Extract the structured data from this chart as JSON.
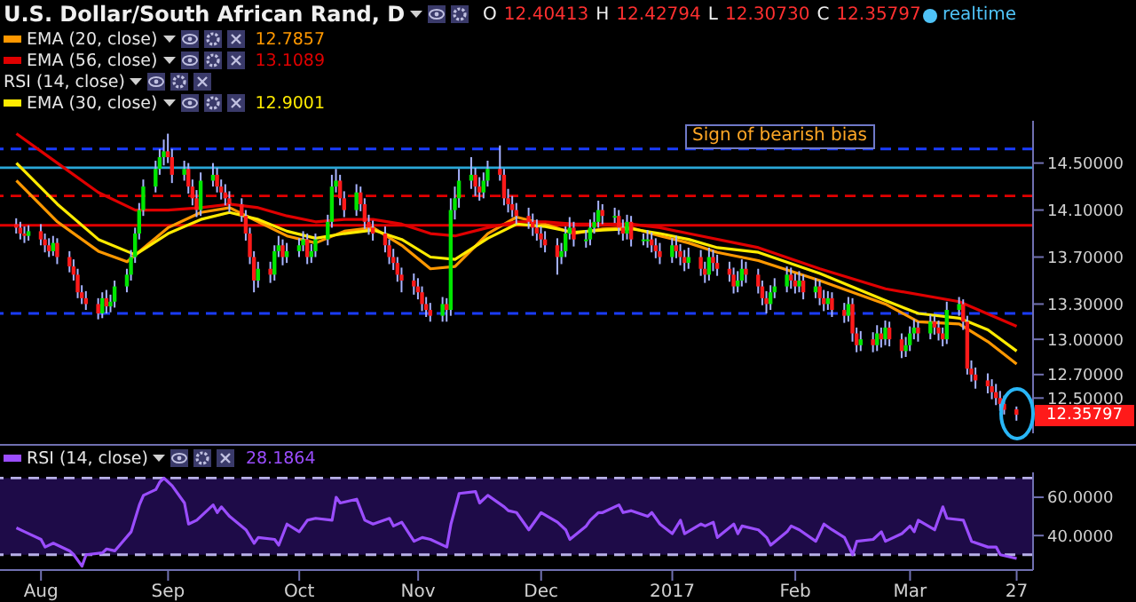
{
  "chart_data": [
    {
      "type": "candlestick",
      "title": "U.S. Dollar/South African Rand, D",
      "x": [
        "2016-07-26",
        "2016-07-27",
        "2016-07-28",
        "2016-07-29",
        "2016-08-01",
        "2016-08-02",
        "2016-08-03",
        "2016-08-04",
        "2016-08-05",
        "2016-08-08",
        "2016-08-09",
        "2016-08-10",
        "2016-08-11",
        "2016-08-12",
        "2016-08-15",
        "2016-08-16",
        "2016-08-17",
        "2016-08-18",
        "2016-08-19",
        "2016-08-22",
        "2016-08-23",
        "2016-08-24",
        "2016-08-25",
        "2016-08-26",
        "2016-08-29",
        "2016-08-30",
        "2016-08-31",
        "2016-09-01",
        "2016-09-02",
        "2016-09-05",
        "2016-09-06",
        "2016-09-07",
        "2016-09-08",
        "2016-09-09",
        "2016-09-12",
        "2016-09-13",
        "2016-09-14",
        "2016-09-15",
        "2016-09-16",
        "2016-09-19",
        "2016-09-20",
        "2016-09-21",
        "2016-09-22",
        "2016-09-23",
        "2016-09-26",
        "2016-09-27",
        "2016-09-28",
        "2016-09-29",
        "2016-09-30",
        "2016-10-03",
        "2016-10-04",
        "2016-10-05",
        "2016-10-06",
        "2016-10-07",
        "2016-10-10",
        "2016-10-11",
        "2016-10-12",
        "2016-10-13",
        "2016-10-14",
        "2016-10-17",
        "2016-10-18",
        "2016-10-19",
        "2016-10-20",
        "2016-10-21",
        "2016-10-24",
        "2016-10-25",
        "2016-10-26",
        "2016-10-27",
        "2016-10-28",
        "2016-10-31",
        "2016-11-01",
        "2016-11-02",
        "2016-11-03",
        "2016-11-04",
        "2016-11-07",
        "2016-11-08",
        "2016-11-09",
        "2016-11-10",
        "2016-11-11",
        "2016-11-14",
        "2016-11-15",
        "2016-11-16",
        "2016-11-17",
        "2016-11-18",
        "2016-11-21",
        "2016-11-22",
        "2016-11-23",
        "2016-11-24",
        "2016-11-25",
        "2016-11-28",
        "2016-11-29",
        "2016-11-30",
        "2016-12-01",
        "2016-12-02",
        "2016-12-05",
        "2016-12-06",
        "2016-12-07",
        "2016-12-08",
        "2016-12-09",
        "2016-12-12",
        "2016-12-13",
        "2016-12-14",
        "2016-12-15",
        "2016-12-16",
        "2016-12-19",
        "2016-12-20",
        "2016-12-21",
        "2016-12-22",
        "2016-12-23",
        "2016-12-26",
        "2016-12-27",
        "2016-12-28",
        "2016-12-29",
        "2016-12-30",
        "2017-01-02",
        "2017-01-03",
        "2017-01-04",
        "2017-01-05",
        "2017-01-06",
        "2017-01-09",
        "2017-01-10",
        "2017-01-11",
        "2017-01-12",
        "2017-01-13",
        "2017-01-16",
        "2017-01-17",
        "2017-01-18",
        "2017-01-19",
        "2017-01-20",
        "2017-01-23",
        "2017-01-24",
        "2017-01-25",
        "2017-01-26",
        "2017-01-27",
        "2017-01-30",
        "2017-01-31",
        "2017-02-01",
        "2017-02-02",
        "2017-02-03",
        "2017-02-06",
        "2017-02-07",
        "2017-02-08",
        "2017-02-09",
        "2017-02-10",
        "2017-02-13",
        "2017-02-14",
        "2017-02-15",
        "2017-02-16",
        "2017-02-17",
        "2017-02-20",
        "2017-02-21",
        "2017-02-22",
        "2017-02-23",
        "2017-02-24",
        "2017-02-27",
        "2017-02-28",
        "2017-03-01",
        "2017-03-02",
        "2017-03-03",
        "2017-03-06",
        "2017-03-07",
        "2017-03-08",
        "2017-03-09",
        "2017-03-10",
        "2017-03-13",
        "2017-03-14",
        "2017-03-15",
        "2017-03-16",
        "2017-03-17",
        "2017-03-20",
        "2017-03-21",
        "2017-03-22",
        "2017-03-23",
        "2017-03-24",
        "2017-03-27"
      ],
      "ohlc": [
        [
          13.98,
          14.03,
          13.9,
          13.95
        ],
        [
          13.95,
          14.0,
          13.85,
          13.9
        ],
        [
          13.9,
          13.96,
          13.82,
          13.88
        ],
        [
          13.88,
          13.97,
          13.84,
          13.92
        ],
        [
          13.92,
          13.98,
          13.8,
          13.85
        ],
        [
          13.85,
          13.9,
          13.74,
          13.8
        ],
        [
          13.8,
          13.86,
          13.7,
          13.75
        ],
        [
          13.75,
          13.88,
          13.71,
          13.82
        ],
        [
          13.82,
          13.86,
          13.64,
          13.7
        ],
        [
          13.7,
          13.75,
          13.57,
          13.62
        ],
        [
          13.62,
          13.68,
          13.5,
          13.55
        ],
        [
          13.55,
          13.6,
          13.35,
          13.4
        ],
        [
          13.4,
          13.46,
          13.3,
          13.35
        ],
        [
          13.35,
          13.41,
          13.25,
          13.3
        ],
        [
          13.3,
          13.35,
          13.17,
          13.22
        ],
        [
          13.22,
          13.4,
          13.18,
          13.35
        ],
        [
          13.35,
          13.42,
          13.22,
          13.28
        ],
        [
          13.28,
          13.38,
          13.23,
          13.32
        ],
        [
          13.32,
          13.5,
          13.27,
          13.45
        ],
        [
          13.45,
          13.6,
          13.4,
          13.55
        ],
        [
          13.55,
          13.76,
          13.5,
          13.7
        ],
        [
          13.7,
          13.95,
          13.65,
          13.9
        ],
        [
          13.9,
          14.16,
          13.85,
          14.1
        ],
        [
          14.1,
          14.36,
          14.05,
          14.3
        ],
        [
          14.3,
          14.52,
          14.25,
          14.45
        ],
        [
          14.45,
          14.62,
          14.4,
          14.55
        ],
        [
          14.55,
          14.7,
          14.48,
          14.6
        ],
        [
          14.6,
          14.75,
          14.5,
          14.55
        ],
        [
          14.55,
          14.62,
          14.33,
          14.4
        ],
        [
          14.4,
          14.52,
          14.35,
          14.45
        ],
        [
          14.45,
          14.5,
          14.24,
          14.3
        ],
        [
          14.3,
          14.36,
          14.14,
          14.2
        ],
        [
          14.2,
          14.27,
          14.04,
          14.1
        ],
        [
          14.1,
          14.42,
          14.05,
          14.35
        ],
        [
          14.35,
          14.5,
          14.3,
          14.4
        ],
        [
          14.4,
          14.46,
          14.25,
          14.3
        ],
        [
          14.3,
          14.36,
          14.19,
          14.25
        ],
        [
          14.25,
          14.32,
          14.14,
          14.2
        ],
        [
          14.2,
          14.26,
          14.08,
          14.15
        ],
        [
          14.15,
          14.2,
          14.0,
          14.05
        ],
        [
          14.05,
          14.1,
          13.84,
          13.9
        ],
        [
          13.9,
          13.95,
          13.64,
          13.7
        ],
        [
          13.7,
          13.75,
          13.4,
          13.5
        ],
        [
          13.5,
          13.66,
          13.44,
          13.6
        ],
        [
          13.6,
          13.66,
          13.48,
          13.55
        ],
        [
          13.55,
          13.8,
          13.5,
          13.75
        ],
        [
          13.75,
          13.88,
          13.7,
          13.8
        ],
        [
          13.8,
          13.85,
          13.63,
          13.7
        ],
        [
          13.7,
          13.82,
          13.65,
          13.75
        ],
        [
          13.75,
          13.86,
          13.7,
          13.8
        ],
        [
          13.8,
          13.92,
          13.75,
          13.85
        ],
        [
          13.85,
          13.9,
          13.64,
          13.7
        ],
        [
          13.7,
          13.81,
          13.65,
          13.75
        ],
        [
          13.75,
          13.9,
          13.7,
          13.85
        ],
        [
          13.85,
          14.06,
          13.8,
          14.0
        ],
        [
          14.0,
          14.4,
          13.95,
          14.3
        ],
        [
          14.3,
          14.45,
          14.25,
          14.35
        ],
        [
          14.35,
          14.4,
          14.14,
          14.2
        ],
        [
          14.2,
          14.26,
          14.04,
          14.1
        ],
        [
          14.1,
          14.32,
          14.05,
          14.25
        ],
        [
          14.25,
          14.3,
          14.09,
          14.15
        ],
        [
          14.15,
          14.2,
          13.94,
          14.0
        ],
        [
          14.0,
          14.06,
          13.89,
          13.95
        ],
        [
          13.95,
          14.01,
          13.84,
          13.9
        ],
        [
          13.9,
          13.96,
          13.74,
          13.8
        ],
        [
          13.8,
          13.85,
          13.64,
          13.7
        ],
        [
          13.7,
          13.77,
          13.59,
          13.65
        ],
        [
          13.65,
          13.7,
          13.49,
          13.55
        ],
        [
          13.55,
          13.61,
          13.4,
          13.5
        ],
        [
          13.5,
          13.56,
          13.38,
          13.45
        ],
        [
          13.45,
          13.52,
          13.34,
          13.4
        ],
        [
          13.4,
          13.45,
          13.24,
          13.3
        ],
        [
          13.3,
          13.36,
          13.19,
          13.25
        ],
        [
          13.25,
          13.31,
          13.15,
          13.2
        ],
        [
          13.2,
          13.36,
          13.15,
          13.3
        ],
        [
          13.3,
          13.35,
          13.15,
          13.25
        ],
        [
          13.25,
          14.2,
          13.2,
          14.1
        ],
        [
          14.1,
          14.3,
          14.02,
          14.2
        ],
        [
          14.2,
          14.45,
          14.12,
          14.35
        ],
        [
          14.35,
          14.55,
          14.28,
          14.4
        ],
        [
          14.4,
          14.46,
          14.22,
          14.3
        ],
        [
          14.3,
          14.38,
          14.18,
          14.25
        ],
        [
          14.25,
          14.42,
          14.2,
          14.35
        ],
        [
          14.35,
          14.52,
          14.3,
          14.45
        ],
        [
          14.45,
          14.65,
          14.35,
          14.4
        ],
        [
          14.4,
          14.45,
          14.14,
          14.2
        ],
        [
          14.2,
          14.28,
          14.08,
          14.15
        ],
        [
          14.15,
          14.22,
          14.04,
          14.1
        ],
        [
          14.1,
          14.16,
          13.98,
          14.05
        ],
        [
          14.05,
          14.12,
          13.94,
          14.0
        ],
        [
          14.0,
          14.07,
          13.88,
          13.95
        ],
        [
          13.95,
          14.02,
          13.84,
          13.9
        ],
        [
          13.9,
          13.96,
          13.78,
          13.85
        ],
        [
          13.85,
          13.92,
          13.74,
          13.8
        ],
        [
          13.8,
          13.86,
          13.55,
          13.7
        ],
        [
          13.7,
          13.82,
          13.64,
          13.75
        ],
        [
          13.75,
          13.96,
          13.7,
          13.9
        ],
        [
          13.9,
          14.04,
          13.85,
          13.95
        ],
        [
          13.95,
          14.0,
          13.79,
          13.85
        ],
        [
          13.85,
          13.93,
          13.78,
          13.85
        ],
        [
          13.85,
          14.02,
          13.8,
          13.95
        ],
        [
          13.95,
          14.08,
          13.9,
          14.0
        ],
        [
          14.0,
          14.18,
          13.95,
          14.1
        ],
        [
          14.1,
          14.15,
          13.98,
          14.05
        ],
        [
          14.05,
          14.12,
          13.99,
          14.05
        ],
        [
          14.05,
          14.1,
          13.89,
          13.95
        ],
        [
          13.95,
          14.02,
          13.84,
          13.9
        ],
        [
          13.9,
          14.06,
          13.85,
          14.0
        ],
        [
          14.0,
          14.05,
          13.79,
          13.85
        ],
        [
          13.85,
          13.9,
          13.8,
          13.85
        ],
        [
          13.85,
          13.93,
          13.78,
          13.85
        ],
        [
          13.85,
          13.91,
          13.74,
          13.8
        ],
        [
          13.8,
          13.86,
          13.69,
          13.75
        ],
        [
          13.75,
          13.82,
          13.64,
          13.7
        ],
        [
          13.7,
          13.86,
          13.65,
          13.8
        ],
        [
          13.8,
          13.88,
          13.69,
          13.75
        ],
        [
          13.75,
          13.81,
          13.63,
          13.7
        ],
        [
          13.7,
          13.76,
          13.58,
          13.65
        ],
        [
          13.65,
          13.78,
          13.6,
          13.7
        ],
        [
          13.7,
          13.76,
          13.54,
          13.6
        ],
        [
          13.6,
          13.66,
          13.48,
          13.55
        ],
        [
          13.55,
          13.78,
          13.5,
          13.7
        ],
        [
          13.7,
          13.76,
          13.58,
          13.65
        ],
        [
          13.65,
          13.72,
          13.54,
          13.6
        ],
        [
          13.6,
          13.66,
          13.49,
          13.55
        ],
        [
          13.55,
          13.61,
          13.39,
          13.45
        ],
        [
          13.45,
          13.58,
          13.4,
          13.5
        ],
        [
          13.5,
          13.68,
          13.45,
          13.6
        ],
        [
          13.6,
          13.66,
          13.48,
          13.55
        ],
        [
          13.55,
          13.6,
          13.39,
          13.45
        ],
        [
          13.45,
          13.5,
          13.29,
          13.35
        ],
        [
          13.35,
          13.41,
          13.22,
          13.3
        ],
        [
          13.3,
          13.46,
          13.25,
          13.4
        ],
        [
          13.4,
          13.52,
          13.35,
          13.45
        ],
        [
          13.45,
          13.62,
          13.4,
          13.55
        ],
        [
          13.55,
          13.61,
          13.43,
          13.5
        ],
        [
          13.5,
          13.56,
          13.39,
          13.45
        ],
        [
          13.45,
          13.58,
          13.4,
          13.5
        ],
        [
          13.5,
          13.55,
          13.34,
          13.4
        ],
        [
          13.4,
          13.52,
          13.35,
          13.45
        ],
        [
          13.45,
          13.5,
          13.29,
          13.35
        ],
        [
          13.35,
          13.42,
          13.24,
          13.3
        ],
        [
          13.3,
          13.41,
          13.25,
          13.35
        ],
        [
          13.35,
          13.4,
          13.19,
          13.25
        ],
        [
          13.25,
          13.31,
          13.14,
          13.2
        ],
        [
          13.2,
          13.36,
          13.15,
          13.3
        ],
        [
          13.3,
          13.35,
          12.98,
          13.05
        ],
        [
          13.05,
          13.1,
          12.89,
          12.95
        ],
        [
          12.95,
          13.07,
          12.9,
          13.0
        ],
        [
          13.0,
          13.06,
          12.89,
          12.95
        ],
        [
          12.95,
          13.12,
          12.9,
          13.05
        ],
        [
          13.05,
          13.1,
          12.93,
          13.0
        ],
        [
          13.0,
          13.16,
          12.95,
          13.1
        ],
        [
          13.1,
          13.15,
          12.94,
          13.0
        ],
        [
          13.0,
          13.05,
          12.84,
          12.9
        ],
        [
          12.9,
          13.02,
          12.85,
          12.95
        ],
        [
          12.95,
          13.11,
          12.9,
          13.05
        ],
        [
          13.05,
          13.17,
          13.0,
          13.1
        ],
        [
          13.1,
          13.15,
          12.98,
          13.05
        ],
        [
          13.05,
          13.21,
          13.0,
          13.15
        ],
        [
          13.15,
          13.2,
          13.04,
          13.1
        ],
        [
          13.1,
          13.16,
          12.99,
          13.05
        ],
        [
          13.05,
          13.1,
          12.94,
          13.0
        ],
        [
          13.0,
          13.32,
          12.96,
          13.25
        ],
        [
          13.25,
          13.36,
          13.2,
          13.3
        ],
        [
          13.3,
          13.34,
          13.08,
          13.15
        ],
        [
          13.15,
          13.2,
          12.7,
          12.75
        ],
        [
          12.75,
          12.82,
          12.64,
          12.7
        ],
        [
          12.7,
          12.76,
          12.58,
          12.65
        ],
        [
          12.65,
          12.71,
          12.54,
          12.6
        ],
        [
          12.6,
          12.66,
          12.49,
          12.55
        ],
        [
          12.55,
          12.62,
          12.44,
          12.5
        ],
        [
          12.5,
          12.56,
          12.39,
          12.45
        ],
        [
          12.45,
          12.52,
          12.36,
          12.4
        ],
        [
          12.40413,
          12.42794,
          12.3073,
          12.35797
        ]
      ],
      "series": [
        {
          "type": "line",
          "name": "EMA (20, close)",
          "color": "#ff9800",
          "x": [
            "2016-07-26",
            "2016-08-05",
            "2016-08-15",
            "2016-08-22",
            "2016-09-01",
            "2016-09-09",
            "2016-09-16",
            "2016-09-23",
            "2016-09-30",
            "2016-10-07",
            "2016-10-14",
            "2016-10-21",
            "2016-10-28",
            "2016-11-04",
            "2016-11-10",
            "2016-11-18",
            "2016-11-25",
            "2016-12-02",
            "2016-12-09",
            "2016-12-16",
            "2016-12-23",
            "2016-12-30",
            "2017-01-06",
            "2017-01-13",
            "2017-01-23",
            "2017-02-07",
            "2017-02-23",
            "2017-03-03",
            "2017-03-13",
            "2017-03-20",
            "2017-03-27"
          ],
          "values": [
            14.35,
            14.0,
            13.75,
            13.66,
            13.95,
            14.08,
            14.12,
            14.0,
            13.88,
            13.82,
            13.92,
            13.95,
            13.8,
            13.6,
            13.62,
            13.9,
            14.04,
            13.98,
            13.9,
            13.94,
            13.95,
            13.88,
            13.82,
            13.74,
            13.67,
            13.5,
            13.3,
            13.15,
            13.13,
            12.98,
            12.79
          ]
        },
        {
          "type": "line",
          "name": "EMA (56, close)",
          "color": "#e00000",
          "x": [
            "2016-07-26",
            "2016-08-05",
            "2016-08-15",
            "2016-08-24",
            "2016-09-01",
            "2016-09-09",
            "2016-09-16",
            "2016-09-23",
            "2016-09-30",
            "2016-10-07",
            "2016-10-14",
            "2016-10-21",
            "2016-10-28",
            "2016-11-04",
            "2016-11-10",
            "2016-11-18",
            "2016-11-25",
            "2016-12-02",
            "2016-12-09",
            "2016-12-16",
            "2016-12-23",
            "2016-12-30",
            "2017-01-06",
            "2017-01-23",
            "2017-02-07",
            "2017-02-23",
            "2017-03-13",
            "2017-03-27"
          ],
          "values": [
            14.75,
            14.5,
            14.25,
            14.1,
            14.1,
            14.12,
            14.15,
            14.12,
            14.05,
            14.0,
            14.02,
            14.02,
            13.98,
            13.9,
            13.88,
            13.95,
            14.0,
            14.0,
            13.98,
            13.98,
            13.98,
            13.95,
            13.9,
            13.78,
            13.6,
            13.43,
            13.32,
            13.11
          ]
        },
        {
          "type": "line",
          "name": "EMA (30, close)",
          "color": "#ffeb00",
          "x": [
            "2016-07-26",
            "2016-08-05",
            "2016-08-15",
            "2016-08-24",
            "2016-09-01",
            "2016-09-09",
            "2016-09-16",
            "2016-09-23",
            "2016-09-30",
            "2016-10-07",
            "2016-10-14",
            "2016-10-21",
            "2016-10-28",
            "2016-11-04",
            "2016-11-10",
            "2016-11-18",
            "2016-11-25",
            "2016-12-02",
            "2016-12-09",
            "2016-12-16",
            "2016-12-23",
            "2016-12-30",
            "2017-01-06",
            "2017-01-13",
            "2017-01-23",
            "2017-02-07",
            "2017-02-23",
            "2017-03-03",
            "2017-03-13",
            "2017-03-20",
            "2017-03-27"
          ],
          "values": [
            14.5,
            14.15,
            13.85,
            13.72,
            13.9,
            14.02,
            14.08,
            14.02,
            13.92,
            13.86,
            13.9,
            13.93,
            13.85,
            13.7,
            13.68,
            13.86,
            13.98,
            13.96,
            13.91,
            13.93,
            13.94,
            13.9,
            13.85,
            13.78,
            13.74,
            13.56,
            13.33,
            13.22,
            13.18,
            13.08,
            12.9
          ]
        }
      ],
      "xlim": [
        "2016-07-22",
        "2017-03-31"
      ],
      "ylim": [
        12.2,
        14.86
      ],
      "yticks": [
        {
          "value": 12.5,
          "label": "12.50000"
        },
        {
          "value": 12.7,
          "label": "12.70000"
        },
        {
          "value": 13.0,
          "label": "13.00000"
        },
        {
          "value": 13.3,
          "label": "13.30000"
        },
        {
          "value": 13.7,
          "label": "13.70000"
        },
        {
          "value": 14.1,
          "label": "14.10000"
        },
        {
          "value": 14.5,
          "label": "14.50000"
        }
      ],
      "tick_labels": "y",
      "legend": "top left",
      "ref_lines": [
        {
          "axis": "y",
          "value": 14.62,
          "color": "#1a3cff",
          "line_style": "dashed"
        },
        {
          "axis": "y",
          "value": 13.22,
          "color": "#1a3cff",
          "line_style": "dashed"
        },
        {
          "axis": "y",
          "value": 14.46,
          "color": "#2aa7d8",
          "line_style": "solid"
        },
        {
          "axis": "y",
          "value": 14.22,
          "color": "#e00000",
          "line_style": "dashed"
        },
        {
          "axis": "y",
          "value": 13.97,
          "color": "#e00000",
          "line_style": "solid"
        }
      ],
      "annotations": [
        "O 12.40413 H 12.42794 L 12.30730 C 12.35797",
        "RSI (14, close)",
        "Sign of bearish bias",
        "realtime",
        "12.35797",
        "12.7857",
        "13.1089",
        "12.9001"
      ]
    },
    {
      "type": "line",
      "x": [
        "2016-07-26",
        "2016-07-28",
        "2016-08-01",
        "2016-08-02",
        "2016-08-04",
        "2016-08-08",
        "2016-08-09",
        "2016-08-11",
        "2016-08-12",
        "2016-08-16",
        "2016-08-17",
        "2016-08-19",
        "2016-08-23",
        "2016-08-25",
        "2016-08-26",
        "2016-08-29",
        "2016-08-30",
        "2016-08-31",
        "2016-09-02",
        "2016-09-05",
        "2016-09-06",
        "2016-09-08",
        "2016-09-12",
        "2016-09-13",
        "2016-09-14",
        "2016-09-16",
        "2016-09-20",
        "2016-09-22",
        "2016-09-23",
        "2016-09-27",
        "2016-09-28",
        "2016-09-30",
        "2016-10-03",
        "2016-10-05",
        "2016-10-07",
        "2016-10-11",
        "2016-10-12",
        "2016-10-13",
        "2016-10-17",
        "2016-10-19",
        "2016-10-21",
        "2016-10-25",
        "2016-10-26",
        "2016-10-28",
        "2016-10-31",
        "2016-11-02",
        "2016-11-04",
        "2016-11-08",
        "2016-11-09",
        "2016-11-11",
        "2016-11-15",
        "2016-11-16",
        "2016-11-18",
        "2016-11-22",
        "2016-11-23",
        "2016-11-25",
        "2016-11-28",
        "2016-11-30",
        "2016-12-01",
        "2016-12-05",
        "2016-12-07",
        "2016-12-08",
        "2016-12-12",
        "2016-12-13",
        "2016-12-15",
        "2016-12-16",
        "2016-12-20",
        "2016-12-21",
        "2016-12-23",
        "2016-12-27",
        "2016-12-28",
        "2016-12-30",
        "2017-01-02",
        "2017-01-04",
        "2017-01-05",
        "2017-01-09",
        "2017-01-10",
        "2017-01-12",
        "2017-01-13",
        "2017-01-17",
        "2017-01-18",
        "2017-01-19",
        "2017-01-23",
        "2017-01-25",
        "2017-01-26",
        "2017-01-30",
        "2017-01-31",
        "2017-02-02",
        "2017-02-06",
        "2017-02-08",
        "2017-02-10",
        "2017-02-13",
        "2017-02-15",
        "2017-02-16",
        "2017-02-20",
        "2017-02-22",
        "2017-02-23",
        "2017-02-27",
        "2017-03-01",
        "2017-03-02",
        "2017-03-03",
        "2017-03-07",
        "2017-03-09",
        "2017-03-10",
        "2017-03-14",
        "2017-03-16",
        "2017-03-20",
        "2017-03-22",
        "2017-03-23",
        "2017-03-27"
      ],
      "series": [
        {
          "name": "RSI (14, close)",
          "color": "#9b4dff",
          "values": [
            44,
            42,
            38,
            34,
            36,
            32,
            30,
            24,
            30,
            31,
            33,
            32,
            42,
            56,
            61,
            64,
            68,
            70,
            66,
            57,
            46,
            48,
            56,
            52,
            55,
            50,
            43,
            36,
            39,
            38,
            35,
            46,
            42,
            48,
            49,
            48,
            60,
            57,
            59,
            48,
            46,
            49,
            45,
            47,
            37,
            39,
            38,
            34,
            46,
            62,
            63,
            57,
            61,
            55,
            53,
            52,
            43,
            49,
            52,
            47,
            43,
            38,
            45,
            48,
            52,
            52,
            56,
            52,
            53,
            50,
            52,
            46,
            41,
            48,
            41,
            46,
            45,
            47,
            39,
            46,
            41,
            45,
            43,
            39,
            35,
            42,
            45,
            43,
            37,
            46,
            43,
            39,
            30,
            37,
            38,
            42,
            37,
            41,
            45,
            42,
            48,
            43,
            55,
            49,
            48,
            37,
            34,
            34,
            30,
            28
          ]
        }
      ],
      "annotations": [
        "28.1864"
      ],
      "xlim": [
        "2016-07-22",
        "2017-03-31"
      ],
      "xticks": [
        {
          "value": "2016-08-01",
          "label": "Aug"
        },
        {
          "value": "2016-09-01",
          "label": "Sep"
        },
        {
          "value": "2016-10-03",
          "label": "Oct"
        },
        {
          "value": "2016-11-01",
          "label": "Nov"
        },
        {
          "value": "2016-12-01",
          "label": "Dec"
        },
        {
          "value": "2017-01-02",
          "label": "2017"
        },
        {
          "value": "2017-02-01",
          "label": "Feb"
        },
        {
          "value": "2017-03-01",
          "label": "Mar"
        },
        {
          "value": "2017-03-27",
          "label": "27"
        }
      ],
      "ylim": [
        22,
        73
      ],
      "yticks": [
        {
          "value": 40,
          "label": "40.0000"
        },
        {
          "value": 60,
          "label": "60.0000"
        }
      ],
      "legend": "top left",
      "bands": [
        {
          "axis": "y",
          "from": 30,
          "to": 70,
          "color": "#1e0b48"
        }
      ],
      "ref_lines": [
        {
          "axis": "y",
          "value": 70,
          "color": "#b8b0e8",
          "line_style": "dashed"
        },
        {
          "axis": "y",
          "value": 30,
          "color": "#b8b0e8",
          "line_style": "dashed"
        }
      ]
    }
  ]
}
